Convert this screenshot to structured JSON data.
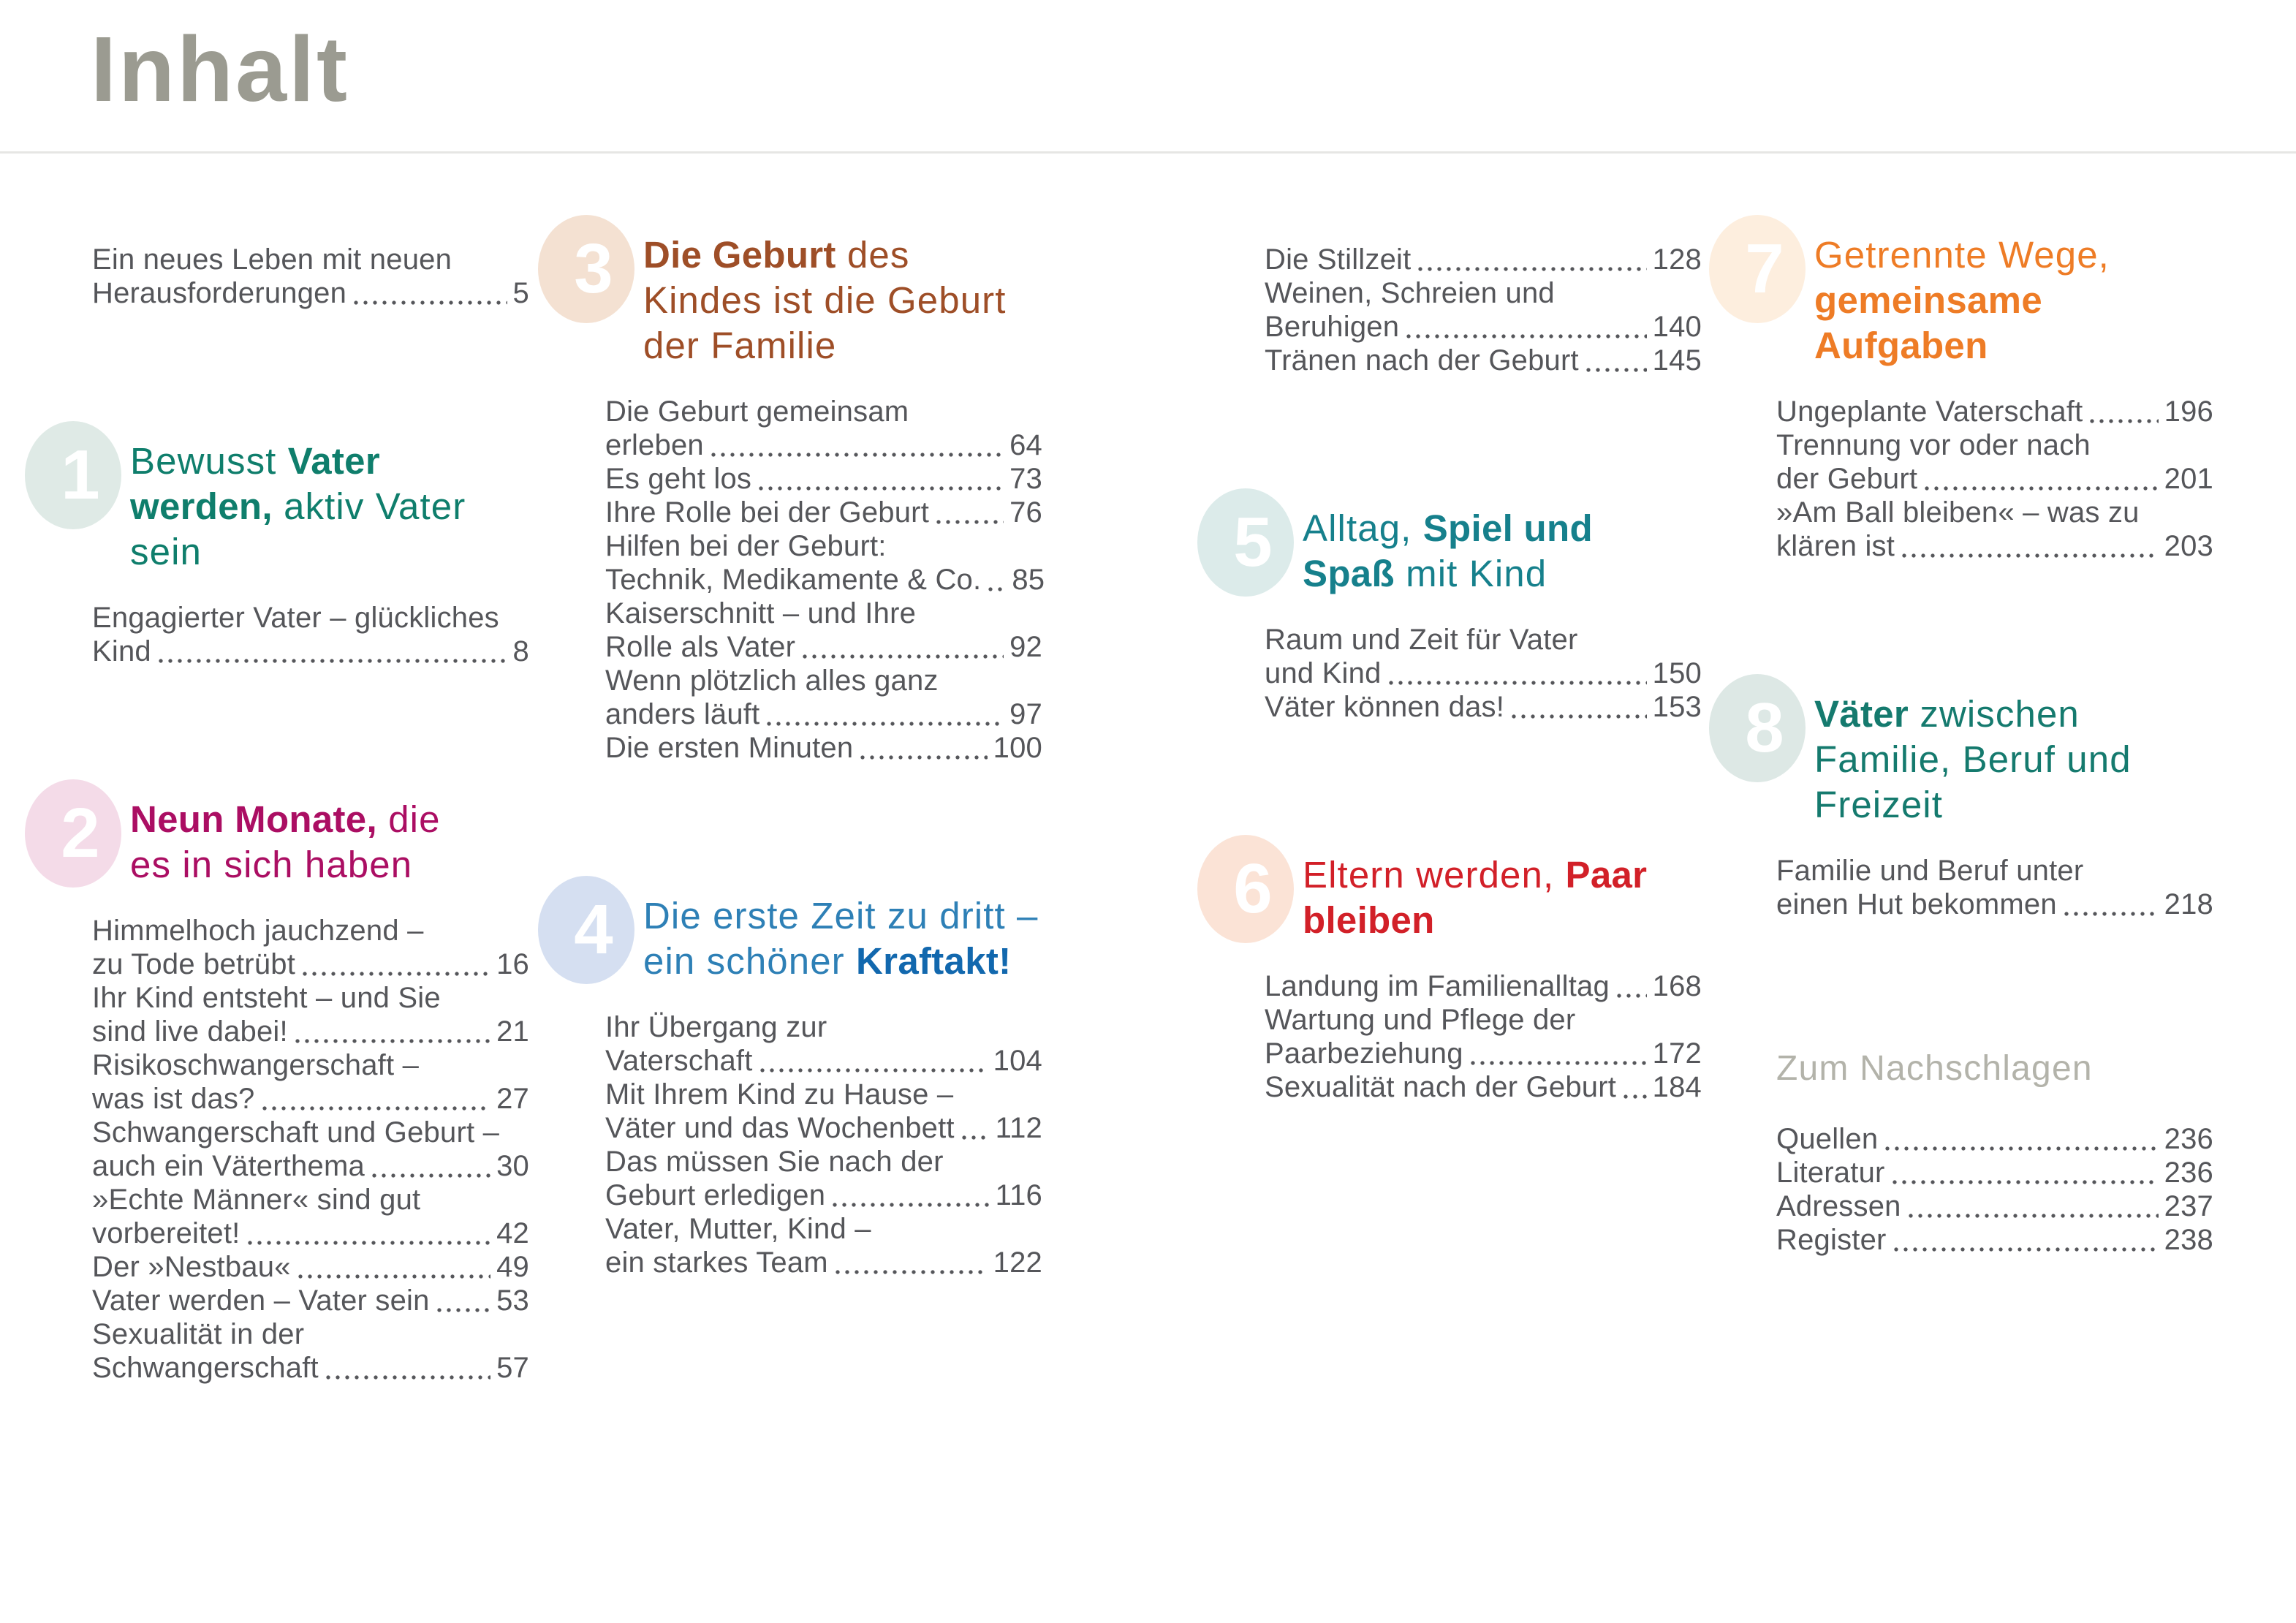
{
  "page": {
    "title": "Inhalt"
  },
  "colors": {
    "background": "#ffffff",
    "title": "#9b9b91",
    "rule": "#e6e6e4",
    "body_text": "#55565a",
    "subhead": "#b3b3aa"
  },
  "columns": [
    {
      "blocks": [
        {
          "type": "entries",
          "items": [
            {
              "pre": [
                "Ein neues Leben mit neuen"
              ],
              "last": "Herausforderungen",
              "page": "5"
            }
          ]
        },
        {
          "type": "chapter",
          "num": "1",
          "bubble": "#dfeae6",
          "color": "#0f7e6c",
          "lines": [
            [
              {
                "t": "Bewusst ",
                "b": false
              },
              {
                "t": "Vater",
                "b": true
              }
            ],
            [
              {
                "t": "werden,",
                "b": true
              },
              {
                "t": " aktiv Vater",
                "b": false
              }
            ],
            [
              {
                "t": "sein",
                "b": false
              }
            ]
          ]
        },
        {
          "type": "entries",
          "items": [
            {
              "pre": [
                "Engagierter Vater – glückliches"
              ],
              "last": "Kind",
              "page": "8"
            }
          ]
        },
        {
          "type": "chapter",
          "num": "2",
          "bubble": "#f4dbe8",
          "color": "#ab0e63",
          "lines": [
            [
              {
                "t": "Neun Monate,",
                "b": true
              },
              {
                "t": " die",
                "b": false
              }
            ],
            [
              {
                "t": "es in sich haben",
                "b": false
              }
            ]
          ]
        },
        {
          "type": "entries",
          "items": [
            {
              "pre": [
                "Himmelhoch jauchzend –"
              ],
              "last": "zu Tode betrübt",
              "page": "16"
            },
            {
              "pre": [
                "Ihr Kind entsteht – und Sie"
              ],
              "last": "sind live dabei!",
              "page": "21"
            },
            {
              "pre": [
                "Risikoschwangerschaft –"
              ],
              "last": "was ist das?",
              "page": "27"
            },
            {
              "pre": [
                "Schwangerschaft und Geburt –"
              ],
              "last": "auch ein Väterthema",
              "page": "30"
            },
            {
              "pre": [
                "»Echte Männer« sind gut"
              ],
              "last": "vorbereitet!",
              "page": "42"
            },
            {
              "pre": [],
              "last": "Der »Nestbau«",
              "page": "49"
            },
            {
              "pre": [],
              "last": "Vater werden – Vater sein",
              "page": "53"
            },
            {
              "pre": [
                "Sexualität in der"
              ],
              "last": "Schwangerschaft",
              "page": "57"
            }
          ]
        }
      ]
    },
    {
      "blocks": [
        {
          "type": "chapter",
          "num": "3",
          "bubble": "#f4e1d2",
          "color": "#9e4e27",
          "lines": [
            [
              {
                "t": "Die Geburt",
                "b": true
              },
              {
                "t": " des",
                "b": false
              }
            ],
            [
              {
                "t": "Kindes ist die Geburt",
                "b": false
              }
            ],
            [
              {
                "t": "der Familie",
                "b": false
              }
            ]
          ]
        },
        {
          "type": "entries",
          "items": [
            {
              "pre": [
                "Die Geburt gemeinsam"
              ],
              "last": "erleben",
              "page": "64"
            },
            {
              "pre": [],
              "last": "Es geht los",
              "page": "73"
            },
            {
              "pre": [],
              "last": "Ihre Rolle bei der Geburt",
              "page": "76"
            },
            {
              "pre": [
                "Hilfen bei der Geburt:"
              ],
              "last": "Technik, Medikamente & Co.",
              "page": "85"
            },
            {
              "pre": [
                "Kaiserschnitt – und Ihre"
              ],
              "last": "Rolle als Vater",
              "page": "92"
            },
            {
              "pre": [
                "Wenn plötzlich alles ganz"
              ],
              "last": "anders läuft",
              "page": "97"
            },
            {
              "pre": [],
              "last": "Die ersten Minuten",
              "page": "100"
            }
          ]
        },
        {
          "type": "chapter",
          "num": "4",
          "bubble": "#d5dff1",
          "color": "#2e80b6",
          "bold_color": "#1268ae",
          "lines": [
            [
              {
                "t": "Die erste Zeit zu dritt –",
                "b": false
              }
            ],
            [
              {
                "t": "ein schöner ",
                "b": false
              },
              {
                "t": "Kraftakt!",
                "b": true
              }
            ]
          ]
        },
        {
          "type": "entries",
          "items": [
            {
              "pre": [
                "Ihr Übergang zur"
              ],
              "last": "Vaterschaft",
              "page": "104"
            },
            {
              "pre": [
                "Mit Ihrem Kind zu Hause –"
              ],
              "last": "Väter und das Wochenbett",
              "page": "112"
            },
            {
              "pre": [
                "Das müssen Sie nach der"
              ],
              "last": "Geburt erledigen",
              "page": "116"
            },
            {
              "pre": [
                "Vater, Mutter, Kind –"
              ],
              "last": "ein starkes Team",
              "page": "122"
            }
          ]
        }
      ]
    },
    {
      "blocks": [
        {
          "type": "entries",
          "items": [
            {
              "pre": [],
              "last": "Die Stillzeit",
              "page": "128"
            },
            {
              "pre": [
                "Weinen, Schreien und"
              ],
              "last": "Beruhigen",
              "page": "140"
            },
            {
              "pre": [],
              "last": "Tränen nach der Geburt",
              "page": "145"
            }
          ]
        },
        {
          "type": "chapter",
          "num": "5",
          "bubble": "#dcebea",
          "color": "#16808c",
          "lines": [
            [
              {
                "t": "Alltag, ",
                "b": false
              },
              {
                "t": "Spiel und",
                "b": true
              }
            ],
            [
              {
                "t": "Spaß",
                "b": true
              },
              {
                "t": " mit Kind",
                "b": false
              }
            ]
          ]
        },
        {
          "type": "entries",
          "items": [
            {
              "pre": [
                "Raum und Zeit für Vater"
              ],
              "last": "und Kind",
              "page": "150"
            },
            {
              "pre": [],
              "last": "Väter können das!",
              "page": "153"
            }
          ]
        },
        {
          "type": "chapter",
          "num": "6",
          "bubble": "#fbe3d6",
          "color": "#d22028",
          "lines": [
            [
              {
                "t": "Eltern werden, ",
                "b": false
              },
              {
                "t": "Paar",
                "b": true
              }
            ],
            [
              {
                "t": "bleiben",
                "b": true
              }
            ]
          ]
        },
        {
          "type": "entries",
          "items": [
            {
              "pre": [],
              "last": "Landung im Familienalltag",
              "page": "168"
            },
            {
              "pre": [
                "Wartung und Pflege der"
              ],
              "last": "Paarbeziehung",
              "page": "172"
            },
            {
              "pre": [],
              "last": "Sexualität nach der Geburt",
              "page": "184"
            }
          ]
        }
      ]
    },
    {
      "blocks": [
        {
          "type": "chapter",
          "num": "7",
          "bubble": "#fdeede",
          "color": "#ee7c26",
          "lines": [
            [
              {
                "t": "Getrennte Wege,",
                "b": false
              }
            ],
            [
              {
                "t": "gemeinsame",
                "b": true
              }
            ],
            [
              {
                "t": "Aufgaben",
                "b": true
              }
            ]
          ]
        },
        {
          "type": "entries",
          "items": [
            {
              "pre": [],
              "last": "Ungeplante Vaterschaft",
              "page": "196"
            },
            {
              "pre": [
                "Trennung vor oder nach"
              ],
              "last": "der Geburt",
              "page": "201"
            },
            {
              "pre": [
                "»Am Ball bleiben« – was zu"
              ],
              "last": "klären ist",
              "page": "203"
            }
          ]
        },
        {
          "type": "chapter",
          "num": "8",
          "bubble": "#dde8e5",
          "color": "#157a6e",
          "lines": [
            [
              {
                "t": "Väter",
                "b": true
              },
              {
                "t": " zwischen",
                "b": false
              }
            ],
            [
              {
                "t": "Familie, Beruf und",
                "b": false
              }
            ],
            [
              {
                "t": "Freizeit",
                "b": false
              }
            ]
          ]
        },
        {
          "type": "entries",
          "items": [
            {
              "pre": [
                "Familie und Beruf unter"
              ],
              "last": "einen Hut bekommen",
              "page": "218"
            }
          ]
        },
        {
          "type": "subhead",
          "text": "Zum Nachschlagen"
        },
        {
          "type": "entries",
          "items": [
            {
              "pre": [],
              "last": "Quellen",
              "page": "236"
            },
            {
              "pre": [],
              "last": "Literatur",
              "page": "236"
            },
            {
              "pre": [],
              "last": "Adressen",
              "page": "237"
            },
            {
              "pre": [],
              "last": "Register",
              "page": "238"
            }
          ]
        }
      ]
    }
  ]
}
